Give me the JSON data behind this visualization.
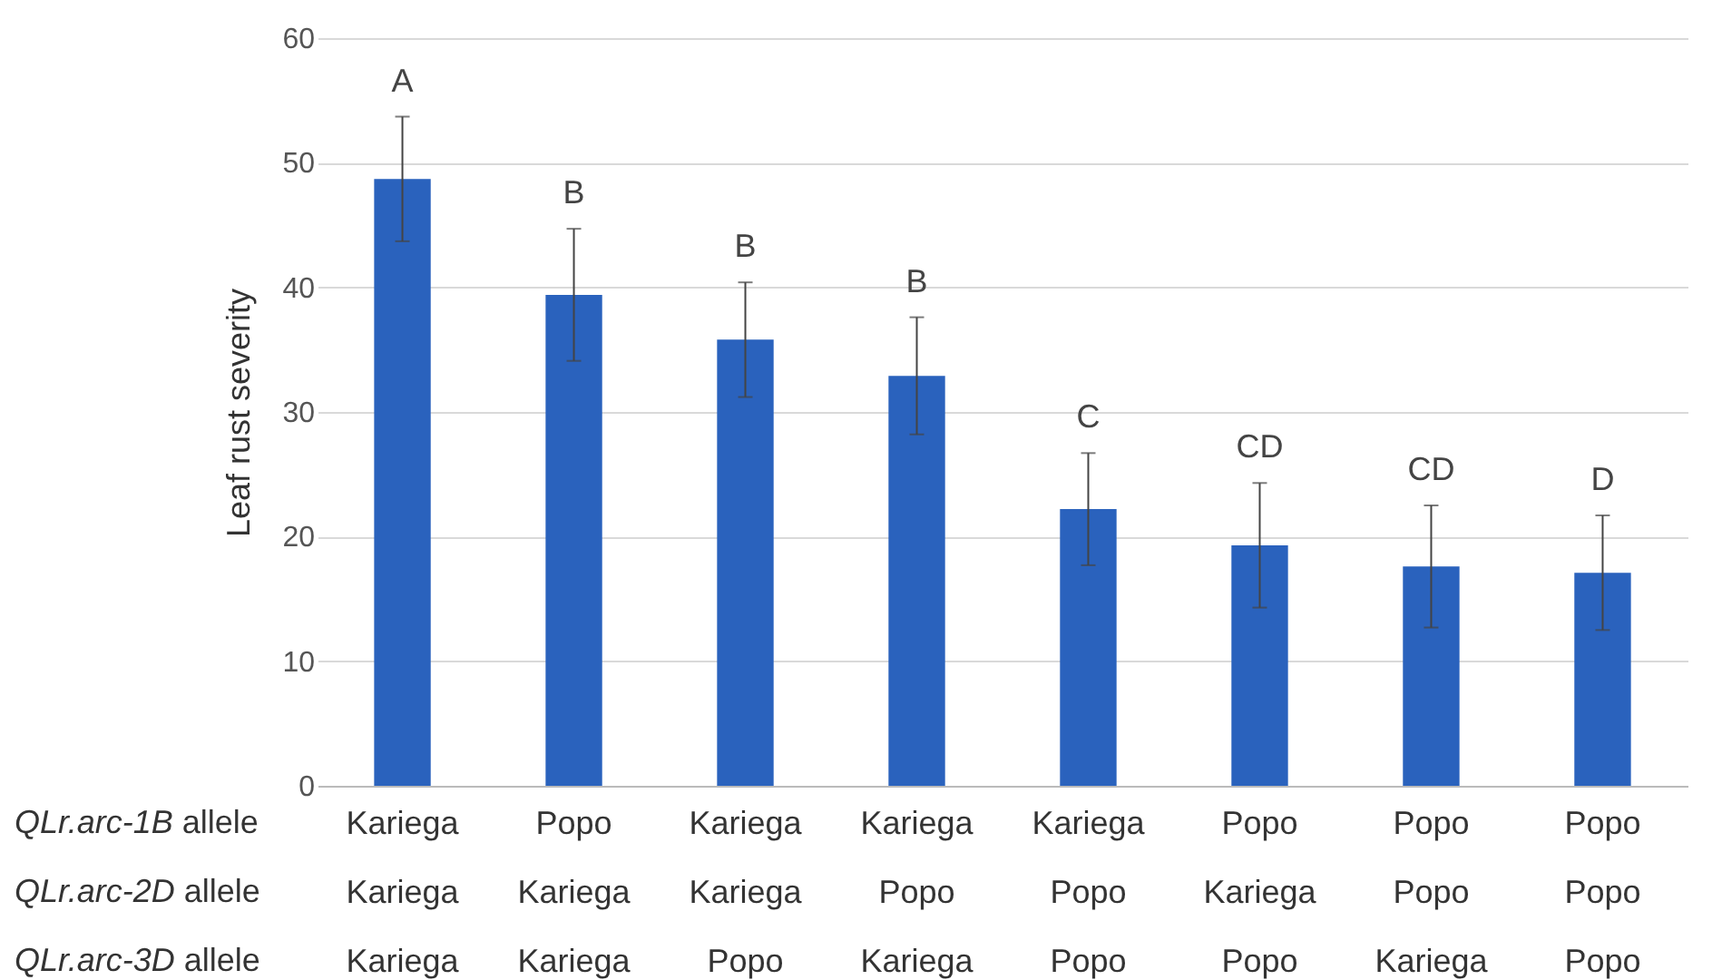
{
  "chart_data": {
    "type": "bar",
    "ylabel": "Leaf rust severity",
    "categories": [
      "Kariega\nKariega\nKariega",
      "Popo\nKariega\nKariega",
      "Kariega\nKariega\nPopo",
      "Kariega\nPopo\nKariega",
      "Kariega\nPopo\nPopo",
      "Popo\nKariega\nPopo",
      "Popo\nPopo\nKariega",
      "Popo\nPopo\nPopo"
    ],
    "values": [
      48.7,
      39.4,
      35.8,
      32.9,
      22.2,
      19.3,
      17.6,
      17.1
    ],
    "errors": [
      5.0,
      5.3,
      4.6,
      4.7,
      4.5,
      5.0,
      4.9,
      4.6
    ],
    "color": "#2a62bd",
    "ylim": [
      0,
      60
    ],
    "yticks": [
      0,
      10,
      20,
      30,
      40,
      50,
      60
    ],
    "grid": "y",
    "annotations": [
      "A",
      "B",
      "B",
      "B",
      "C",
      "CD",
      "CD",
      "D",
      "QLr.arc-1B allele",
      "QLr.arc-2D allele",
      "QLr.arc-3D allele"
    ]
  }
}
